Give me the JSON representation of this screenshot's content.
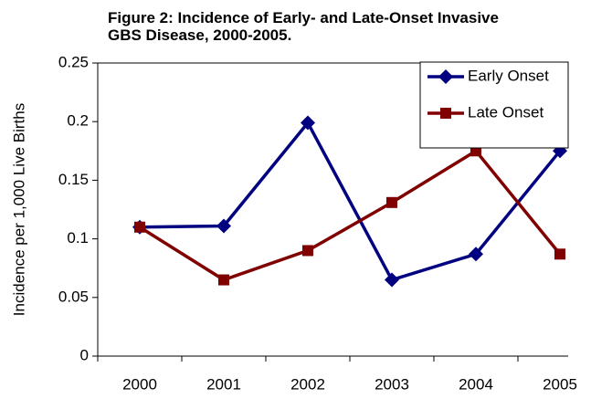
{
  "chart_data": {
    "type": "line",
    "title": "Figure 2: Incidence of Early- and Late-Onset Invasive GBS Disease, 2000-2005.",
    "y_label": "Incidence per 1,000 Live Births",
    "categories": [
      "2000",
      "2001",
      "2002",
      "2003",
      "2004",
      "2005"
    ],
    "series": [
      {
        "name": "Early Onset",
        "color": "#000080",
        "marker": "diamond",
        "values": [
          0.11,
          0.111,
          0.199,
          0.065,
          0.087,
          0.175
        ]
      },
      {
        "name": "Late Onset",
        "color": "#800000",
        "marker": "square",
        "values": [
          0.11,
          0.065,
          0.09,
          0.131,
          0.175,
          0.087
        ]
      }
    ],
    "ylim": [
      0,
      0.25
    ],
    "yticks": [
      0,
      0.05,
      0.1,
      0.15,
      0.2,
      0.25
    ],
    "grid": false,
    "legend": "top-right"
  }
}
